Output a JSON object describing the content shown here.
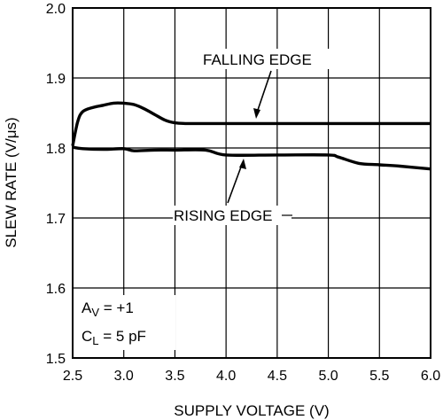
{
  "chart_data": {
    "type": "line",
    "title": "",
    "xlabel": "SUPPLY VOLTAGE (V)",
    "ylabel": "SLEW RATE (V/μs)",
    "xlim": [
      2.5,
      6.0
    ],
    "ylim": [
      1.5,
      2.0
    ],
    "x_ticks": [
      "2.5",
      "3.0",
      "3.5",
      "4.0",
      "4.5",
      "5.0",
      "5.5",
      "6.0"
    ],
    "y_ticks": [
      "1.5",
      "1.6",
      "1.7",
      "1.8",
      "1.9",
      "2.0"
    ],
    "grid": true,
    "series": [
      {
        "name": "FALLING EDGE",
        "x": [
          2.5,
          2.55,
          2.6,
          2.7,
          2.8,
          2.9,
          3.0,
          3.1,
          3.2,
          3.3,
          3.4,
          3.5,
          3.6,
          3.8,
          4.0,
          4.5,
          5.0,
          5.5,
          6.0
        ],
        "y": [
          1.803,
          1.838,
          1.852,
          1.858,
          1.861,
          1.864,
          1.864,
          1.862,
          1.856,
          1.848,
          1.84,
          1.836,
          1.835,
          1.835,
          1.835,
          1.835,
          1.835,
          1.835,
          1.835
        ]
      },
      {
        "name": "RISING EDGE",
        "x": [
          2.5,
          2.6,
          2.8,
          3.0,
          3.1,
          3.3,
          3.5,
          3.8,
          4.0,
          4.5,
          5.0,
          5.1,
          5.3,
          5.5,
          5.7,
          6.0
        ],
        "y": [
          1.801,
          1.799,
          1.798,
          1.799,
          1.796,
          1.797,
          1.797,
          1.797,
          1.79,
          1.79,
          1.79,
          1.787,
          1.778,
          1.776,
          1.774,
          1.77
        ]
      }
    ],
    "annotations": {
      "falling_label": "FALLING EDGE",
      "rising_label": "RISING EDGE",
      "gain_main": "A",
      "gain_sub": "V",
      "gain_rest": " = +1",
      "load_main": "C",
      "load_sub": "L",
      "load_rest": " = 5 pF"
    }
  }
}
